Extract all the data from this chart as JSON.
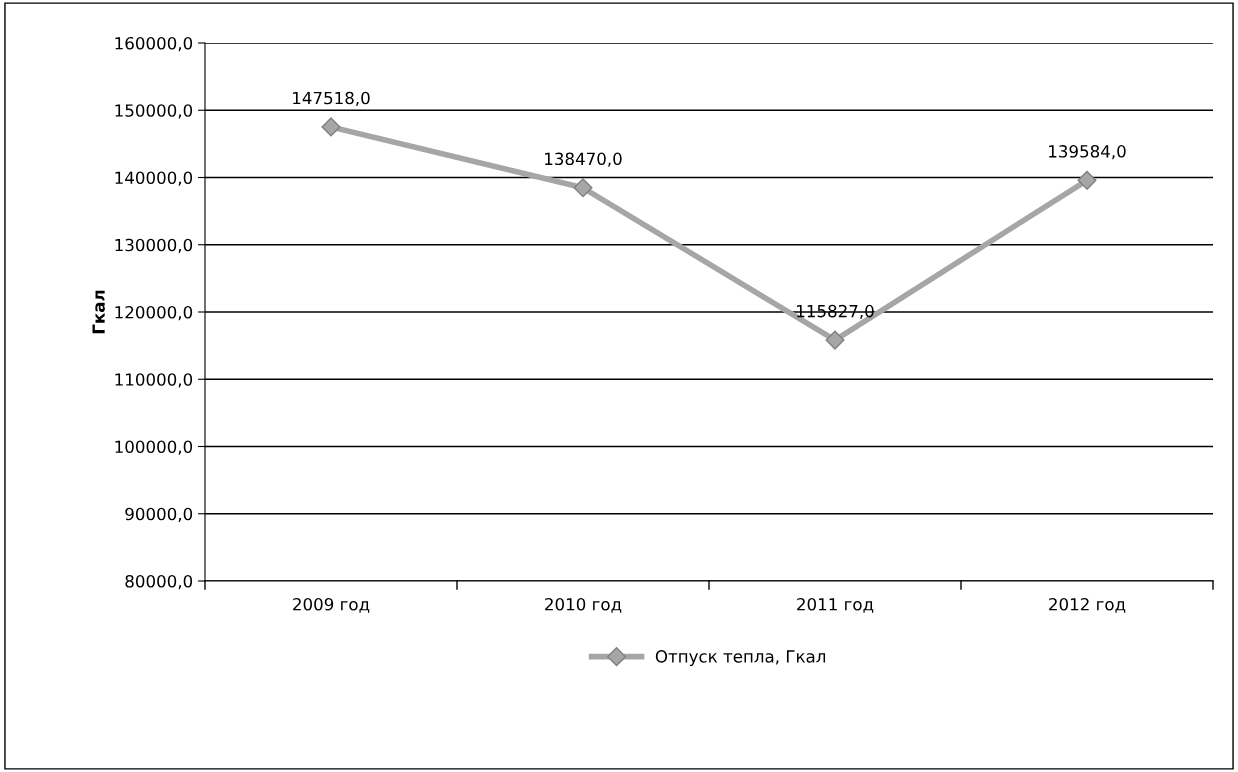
{
  "chart_data": {
    "type": "line",
    "ylabel": "Гкал",
    "categories": [
      "2009 год",
      "2010 год",
      "2011 год",
      "2012 год"
    ],
    "series": [
      {
        "name": "Отпуск тепла, Гкал",
        "color": "#a6a6a6",
        "values": [
          147518.0,
          138470.0,
          115827.0,
          139584.0
        ],
        "value_labels": [
          "147518,0",
          "138470,0",
          "115827,0",
          "139584,0"
        ]
      }
    ],
    "ylim": [
      80000,
      160000
    ],
    "yticks": [
      {
        "value": 80000,
        "label": "80000,0"
      },
      {
        "value": 90000,
        "label": "90000,0"
      },
      {
        "value": 100000,
        "label": "100000,0"
      },
      {
        "value": 110000,
        "label": "110000,0"
      },
      {
        "value": 120000,
        "label": "120000,0"
      },
      {
        "value": 130000,
        "label": "130000,0"
      },
      {
        "value": 140000,
        "label": "140000,0"
      },
      {
        "value": 150000,
        "label": "150000,0"
      },
      {
        "value": 160000,
        "label": "160000,0"
      }
    ],
    "grid": "y",
    "legend": "bottom",
    "marker": "diamond",
    "line_style": "solid"
  }
}
